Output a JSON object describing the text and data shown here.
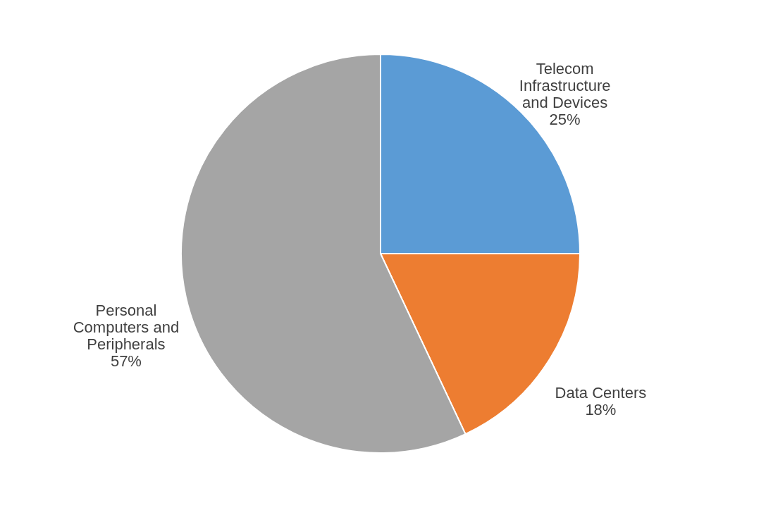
{
  "chart_data": {
    "type": "pie",
    "categories": [
      "Telecom Infrastructure and Devices",
      "Data Centers",
      "Personal Computers and Peripherals"
    ],
    "values": [
      25,
      18,
      57
    ],
    "colors": [
      "#5b9bd5",
      "#ed7d31",
      "#a5a5a5"
    ],
    "value_labels": [
      "25%",
      "18%",
      "57%"
    ],
    "legend": false
  }
}
